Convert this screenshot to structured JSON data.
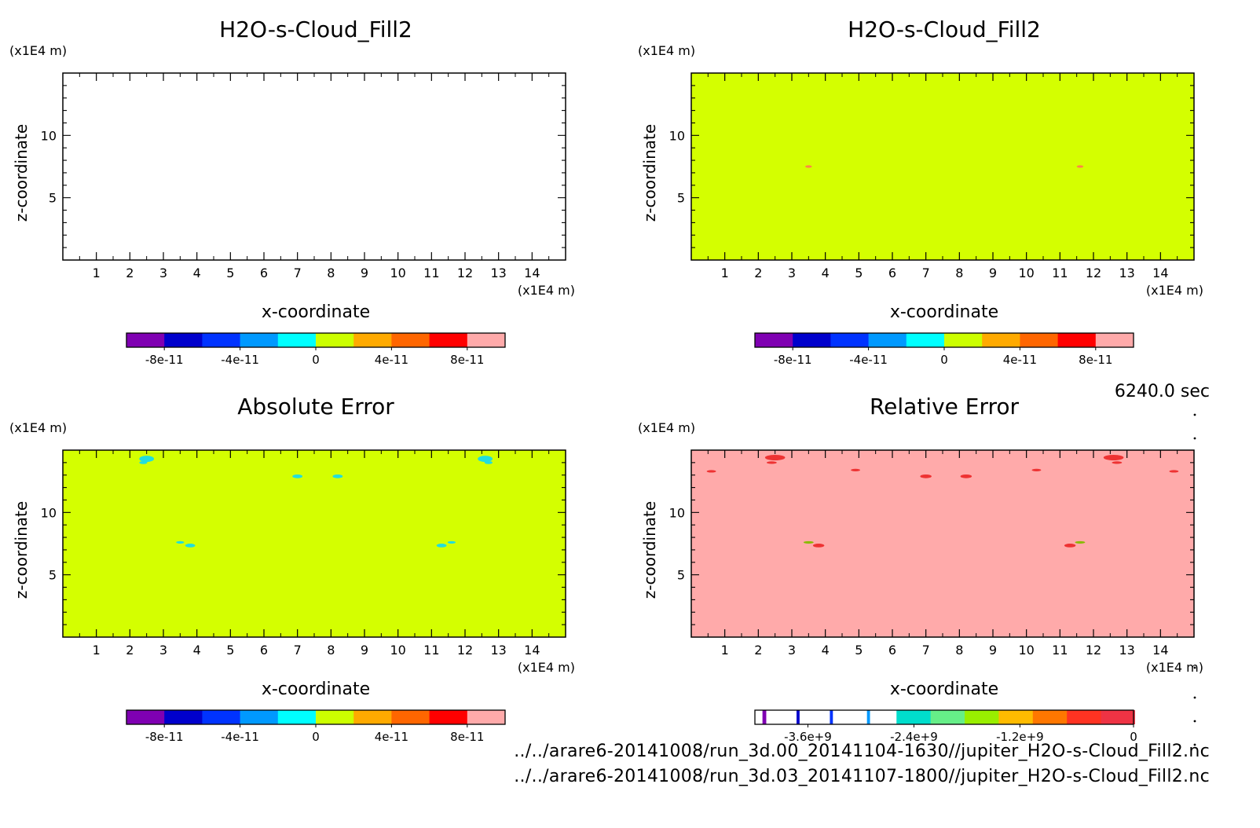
{
  "chart_data": [
    {
      "type": "heatmap",
      "title": "H2O-s-Cloud_Fill2",
      "xlabel": "x-coordinate",
      "ylabel": "z-coordinate",
      "xunit": "(x1E4 m)",
      "yunit": "(x1E4 m)",
      "xlim": [
        0,
        15
      ],
      "ylim": [
        0,
        15
      ],
      "x_ticks": [
        "1",
        "2",
        "3",
        "4",
        "5",
        "6",
        "7",
        "8",
        "9",
        "10",
        "11",
        "12",
        "13",
        "14"
      ],
      "y_ticks": [
        "5",
        "10"
      ],
      "background": "#ffffff",
      "features": [],
      "colorbar": {
        "colors": [
          "#7f00b2",
          "#0000cc",
          "#0033ff",
          "#0099ff",
          "#00ffff",
          "#ccff00",
          "#ffaa00",
          "#ff6600",
          "#ff0000",
          "#ffaaaa"
        ],
        "labels": [
          "-8e-11",
          "-4e-11",
          "0",
          "4e-11",
          "8e-11"
        ]
      }
    },
    {
      "type": "heatmap",
      "title": "H2O-s-Cloud_Fill2",
      "xlabel": "x-coordinate",
      "ylabel": "z-coordinate",
      "xunit": "(x1E4 m)",
      "yunit": "(x1E4 m)",
      "xlim": [
        0,
        15
      ],
      "ylim": [
        0,
        15
      ],
      "x_ticks": [
        "1",
        "2",
        "3",
        "4",
        "5",
        "6",
        "7",
        "8",
        "9",
        "10",
        "11",
        "12",
        "13",
        "14"
      ],
      "y_ticks": [
        "5",
        "10"
      ],
      "background": "#d4ff00",
      "features": [
        {
          "x": 3.5,
          "z": 7.5,
          "rx": 0.1,
          "rz": 0.1,
          "color": "#ff8844"
        },
        {
          "x": 11.6,
          "z": 7.5,
          "rx": 0.1,
          "rz": 0.1,
          "color": "#ff8844"
        }
      ],
      "colorbar": {
        "colors": [
          "#7f00b2",
          "#0000cc",
          "#0033ff",
          "#0099ff",
          "#00ffff",
          "#ccff00",
          "#ffaa00",
          "#ff6600",
          "#ff0000",
          "#ffaaaa"
        ],
        "labels": [
          "-8e-11",
          "-4e-11",
          "0",
          "4e-11",
          "8e-11"
        ]
      }
    },
    {
      "type": "heatmap",
      "title": "Absolute Error",
      "xlabel": "x-coordinate",
      "ylabel": "z-coordinate",
      "xunit": "(x1E4 m)",
      "yunit": "(x1E4 m)",
      "xlim": [
        0,
        15
      ],
      "ylim": [
        0,
        15
      ],
      "x_ticks": [
        "1",
        "2",
        "3",
        "4",
        "5",
        "6",
        "7",
        "8",
        "9",
        "10",
        "11",
        "12",
        "13",
        "14"
      ],
      "y_ticks": [
        "5",
        "10"
      ],
      "background": "#d4ff00",
      "features": [
        {
          "x": 2.5,
          "z": 14.3,
          "rx": 0.22,
          "rz": 0.25,
          "color": "#22dddd"
        },
        {
          "x": 2.4,
          "z": 14.0,
          "rx": 0.12,
          "rz": 0.12,
          "color": "#22dddd"
        },
        {
          "x": 12.6,
          "z": 14.3,
          "rx": 0.22,
          "rz": 0.25,
          "color": "#22dddd"
        },
        {
          "x": 12.7,
          "z": 14.0,
          "rx": 0.12,
          "rz": 0.12,
          "color": "#22dddd"
        },
        {
          "x": 7.0,
          "z": 12.9,
          "rx": 0.15,
          "rz": 0.15,
          "color": "#22dddd"
        },
        {
          "x": 8.2,
          "z": 12.9,
          "rx": 0.15,
          "rz": 0.15,
          "color": "#22dddd"
        },
        {
          "x": 3.5,
          "z": 7.6,
          "rx": 0.12,
          "rz": 0.1,
          "color": "#22dddd"
        },
        {
          "x": 3.8,
          "z": 7.35,
          "rx": 0.15,
          "rz": 0.15,
          "color": "#22dddd"
        },
        {
          "x": 11.3,
          "z": 7.35,
          "rx": 0.15,
          "rz": 0.15,
          "color": "#22dddd"
        },
        {
          "x": 11.6,
          "z": 7.6,
          "rx": 0.12,
          "rz": 0.1,
          "color": "#22dddd"
        }
      ],
      "colorbar": {
        "colors": [
          "#7f00b2",
          "#0000cc",
          "#0033ff",
          "#0099ff",
          "#00ffff",
          "#ccff00",
          "#ffaa00",
          "#ff6600",
          "#ff0000",
          "#ffaaaa"
        ],
        "labels": [
          "-8e-11",
          "-4e-11",
          "0",
          "4e-11",
          "8e-11"
        ]
      }
    },
    {
      "type": "heatmap",
      "title": "Relative Error",
      "xlabel": "x-coordinate",
      "ylabel": "z-coordinate",
      "xunit": "(x1E4 m)",
      "yunit": "(x1E4 m)",
      "xlim": [
        0,
        15
      ],
      "ylim": [
        0,
        15
      ],
      "x_ticks": [
        "1",
        "2",
        "3",
        "4",
        "5",
        "6",
        "7",
        "8",
        "9",
        "10",
        "11",
        "12",
        "13",
        "14"
      ],
      "y_ticks": [
        "5",
        "10"
      ],
      "background": "#ffaaaa",
      "features": [
        {
          "x": 2.5,
          "z": 14.4,
          "rx": 0.3,
          "rz": 0.22,
          "color": "#ee3333"
        },
        {
          "x": 2.4,
          "z": 14.0,
          "rx": 0.15,
          "rz": 0.1,
          "color": "#ee3333"
        },
        {
          "x": 12.6,
          "z": 14.4,
          "rx": 0.3,
          "rz": 0.22,
          "color": "#ee3333"
        },
        {
          "x": 12.7,
          "z": 14.0,
          "rx": 0.15,
          "rz": 0.1,
          "color": "#ee3333"
        },
        {
          "x": 0.6,
          "z": 13.3,
          "rx": 0.14,
          "rz": 0.1,
          "color": "#ee3333"
        },
        {
          "x": 4.9,
          "z": 13.4,
          "rx": 0.14,
          "rz": 0.1,
          "color": "#ee3333"
        },
        {
          "x": 7.0,
          "z": 12.9,
          "rx": 0.17,
          "rz": 0.15,
          "color": "#ee3333"
        },
        {
          "x": 8.2,
          "z": 12.9,
          "rx": 0.17,
          "rz": 0.15,
          "color": "#ee3333"
        },
        {
          "x": 10.3,
          "z": 13.4,
          "rx": 0.14,
          "rz": 0.1,
          "color": "#ee3333"
        },
        {
          "x": 14.4,
          "z": 13.3,
          "rx": 0.14,
          "rz": 0.1,
          "color": "#ee3333"
        },
        {
          "x": 3.5,
          "z": 7.6,
          "rx": 0.15,
          "rz": 0.1,
          "color": "#88bb00"
        },
        {
          "x": 3.8,
          "z": 7.35,
          "rx": 0.17,
          "rz": 0.15,
          "color": "#ee3333"
        },
        {
          "x": 11.3,
          "z": 7.35,
          "rx": 0.17,
          "rz": 0.15,
          "color": "#ee3333"
        },
        {
          "x": 11.6,
          "z": 7.6,
          "rx": 0.15,
          "rz": 0.1,
          "color": "#88bb00"
        }
      ],
      "colorbar": {
        "colors": [
          "#ffffff",
          "#7f00b2",
          "#ffffff",
          "#0000cc",
          "#ffffff",
          "#0033ff",
          "#ffffff",
          "#0099ff",
          "#ffffff",
          "#00ddcc",
          "#66ee88",
          "#99ee00",
          "#ffbb00",
          "#ff7700",
          "#ff3322",
          "#ee3344"
        ],
        "widths": [
          0.02,
          0.01,
          0.08,
          0.008,
          0.08,
          0.008,
          0.09,
          0.008,
          0.07,
          0.09,
          0.09,
          0.09,
          0.09,
          0.09,
          0.09,
          0.089
        ],
        "labels": [
          "-3.6e+9",
          "-2.4e+9",
          "-1.2e+9",
          "0"
        ]
      }
    }
  ],
  "time_label": "6240.0 sec",
  "paths": [
    "../../arare6-20141008/run_3d.00_20141104-1630//jupiter_H2O-s-Cloud_Fill2.nc",
    "../../arare6-20141008/run_3d.03_20141107-1800//jupiter_H2O-s-Cloud_Fill2.nc"
  ]
}
